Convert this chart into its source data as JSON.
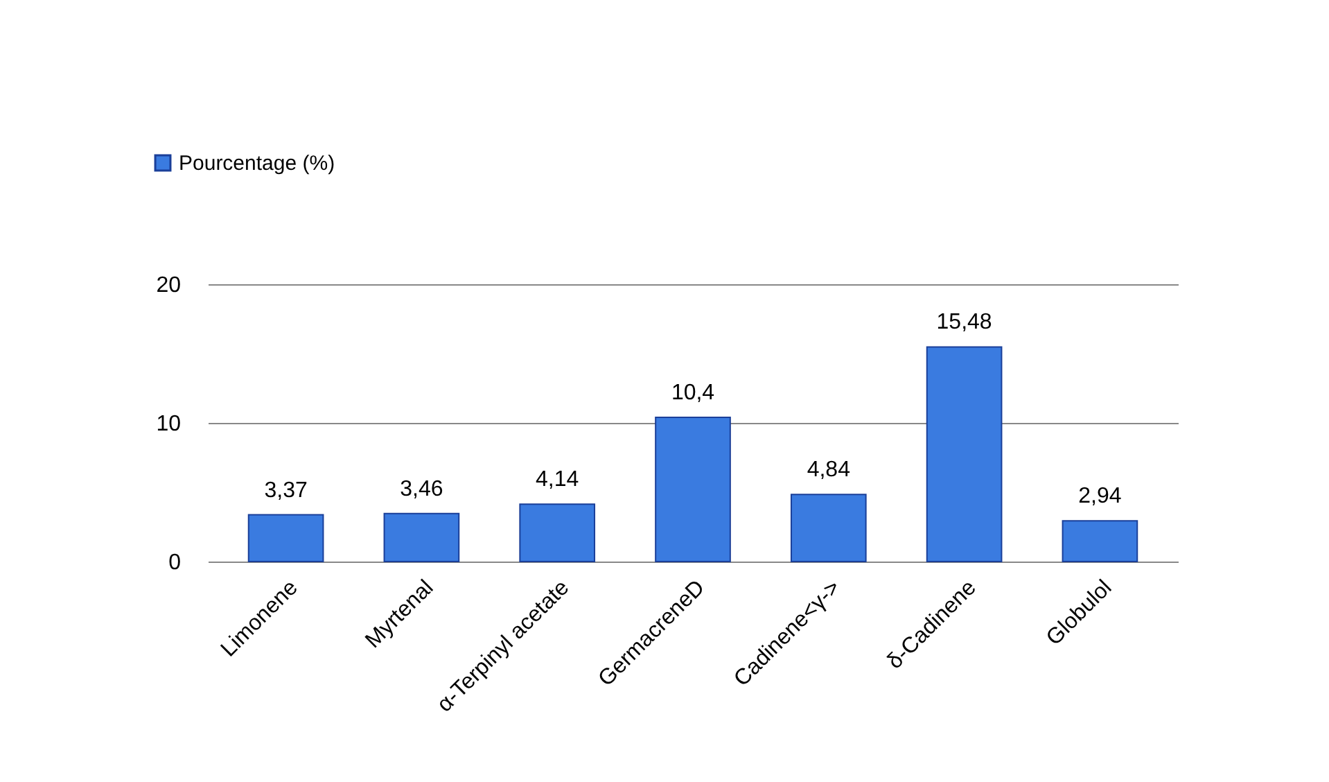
{
  "chart_data": {
    "type": "bar",
    "categories": [
      "Limonene",
      "Myrtenal",
      "α-Terpinyl acetate",
      "GermacreneD",
      "Cadinene<γ->",
      "δ-Cadinene",
      "Globulol"
    ],
    "series": [
      {
        "name": "Pourcentage (%)",
        "color": "#3a7be0",
        "values": [
          3.37,
          3.46,
          4.14,
          10.4,
          4.84,
          15.48,
          2.94
        ],
        "value_labels": [
          "3,37",
          "3,46",
          "4,14",
          "10,4",
          "4,84",
          "15,48",
          "2,94"
        ]
      }
    ],
    "ylim": [
      0,
      20
    ],
    "yticks": [
      0,
      10,
      20
    ],
    "grid": "y",
    "legend": "top left"
  }
}
